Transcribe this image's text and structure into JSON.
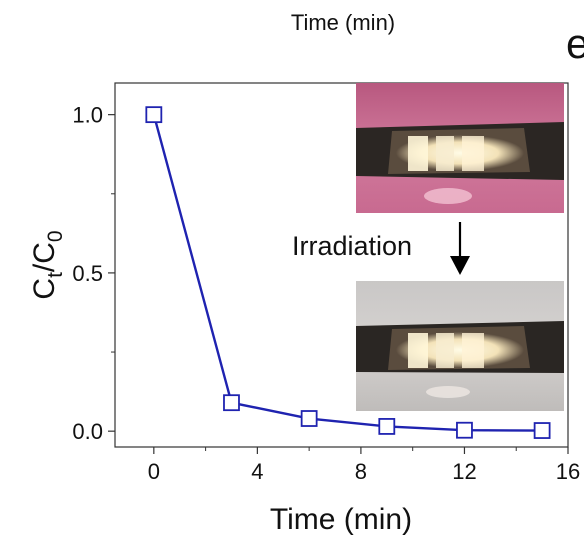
{
  "header_fragment": "Time (min)",
  "panel_letter": "e",
  "annotation": "Irradiation",
  "colors": {
    "series": "#1f23b0",
    "axis": "#333333",
    "photo_before": "#c46a8e",
    "photo_after": "#cbc6c3"
  },
  "chart_data": {
    "type": "line",
    "xlabel": "Time (min)",
    "ylabel": {
      "main": "C",
      "sub1": "t",
      "sep": "/C",
      "sub2": "0"
    },
    "xlim": [
      -1.5,
      16
    ],
    "ylim": [
      -0.05,
      1.1
    ],
    "xticks": [
      0,
      4,
      8,
      12,
      16
    ],
    "xtick_labels": [
      "0",
      "4",
      "8",
      "12",
      "16"
    ],
    "yticks": [
      0.0,
      0.5,
      1.0
    ],
    "ytick_labels": [
      "0.0",
      "0.5",
      "1.0"
    ],
    "grid": false,
    "marker": "open-square",
    "series": [
      {
        "x": [
          0,
          3,
          6,
          9,
          12,
          15
        ],
        "y": [
          1.0,
          0.09,
          0.04,
          0.015,
          0.003,
          0.002
        ]
      }
    ]
  }
}
